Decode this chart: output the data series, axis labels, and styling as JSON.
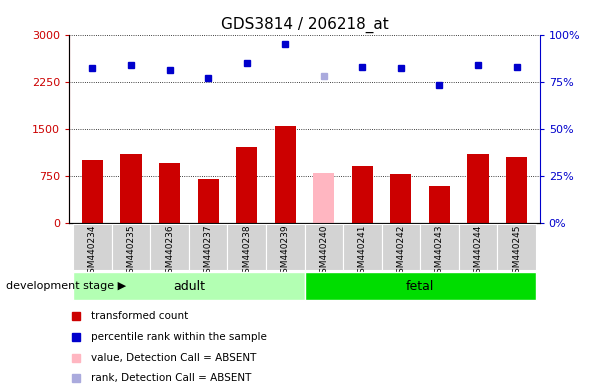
{
  "title": "GDS3814 / 206218_at",
  "samples": [
    "GSM440234",
    "GSM440235",
    "GSM440236",
    "GSM440237",
    "GSM440238",
    "GSM440239",
    "GSM440240",
    "GSM440241",
    "GSM440242",
    "GSM440243",
    "GSM440244",
    "GSM440245"
  ],
  "bar_values": [
    1000,
    1100,
    950,
    700,
    1200,
    1540,
    800,
    900,
    780,
    590,
    1100,
    1050
  ],
  "bar_colors": [
    "#cc0000",
    "#cc0000",
    "#cc0000",
    "#cc0000",
    "#cc0000",
    "#cc0000",
    "#ffb6c1",
    "#cc0000",
    "#cc0000",
    "#cc0000",
    "#cc0000",
    "#cc0000"
  ],
  "scatter_values": [
    82,
    84,
    81,
    77,
    85,
    95,
    78,
    83,
    82,
    73,
    84,
    83
  ],
  "scatter_colors": [
    "#0000cc",
    "#0000cc",
    "#0000cc",
    "#0000cc",
    "#0000cc",
    "#0000cc",
    "#aaaadd",
    "#0000cc",
    "#0000cc",
    "#0000cc",
    "#0000cc",
    "#0000cc"
  ],
  "absent_flags": [
    false,
    false,
    false,
    false,
    false,
    false,
    true,
    false,
    false,
    false,
    false,
    false
  ],
  "group_labels": [
    "adult",
    "fetal"
  ],
  "group_adult_indices": [
    0,
    5
  ],
  "group_fetal_indices": [
    6,
    11
  ],
  "group_adult_color": "#b3ffb3",
  "group_fetal_color": "#00dd00",
  "ylim_left": [
    0,
    3000
  ],
  "ylim_right": [
    0,
    100
  ],
  "yticks_left": [
    0,
    750,
    1500,
    2250,
    3000
  ],
  "yticks_right": [
    0,
    25,
    50,
    75,
    100
  ],
  "left_axis_color": "#cc0000",
  "right_axis_color": "#0000cc",
  "legend_items": [
    {
      "label": "transformed count",
      "color": "#cc0000",
      "marker": "s"
    },
    {
      "label": "percentile rank within the sample",
      "color": "#0000cc",
      "marker": "s"
    },
    {
      "label": "value, Detection Call = ABSENT",
      "color": "#ffb6c1",
      "marker": "s"
    },
    {
      "label": "rank, Detection Call = ABSENT",
      "color": "#aaaadd",
      "marker": "s"
    }
  ],
  "dev_stage_label": "development stage",
  "background_color": "#ffffff",
  "xtick_box_color": "#d3d3d3",
  "title_fontsize": 11
}
